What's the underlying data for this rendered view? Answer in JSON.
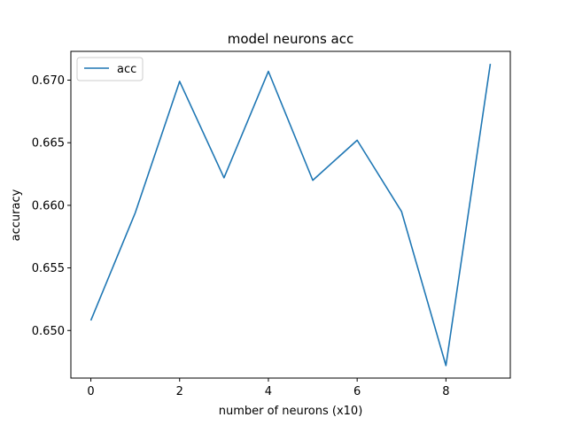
{
  "chart_data": {
    "type": "line",
    "title": "model neurons acc",
    "xlabel": "number of neurons (x10)",
    "ylabel": "accuracy",
    "xlim": [
      -0.45,
      9.45
    ],
    "ylim": [
      0.6462,
      0.6723
    ],
    "x_ticks": [
      0,
      2,
      4,
      6,
      8
    ],
    "x_tick_labels": [
      "0",
      "2",
      "4",
      "6",
      "8"
    ],
    "y_ticks": [
      0.65,
      0.655,
      0.66,
      0.665,
      0.67
    ],
    "y_tick_labels": [
      "0.650",
      "0.655",
      "0.660",
      "0.665",
      "0.670"
    ],
    "grid": false,
    "legend_position": "upper-left",
    "series": [
      {
        "name": "acc",
        "color": "#1f77b4",
        "x": [
          0,
          1,
          2,
          3,
          4,
          5,
          6,
          7,
          8,
          9
        ],
        "values": [
          0.6508,
          0.6594,
          0.6699,
          0.6622,
          0.6707,
          0.662,
          0.6652,
          0.6595,
          0.6472,
          0.6713
        ]
      }
    ]
  }
}
